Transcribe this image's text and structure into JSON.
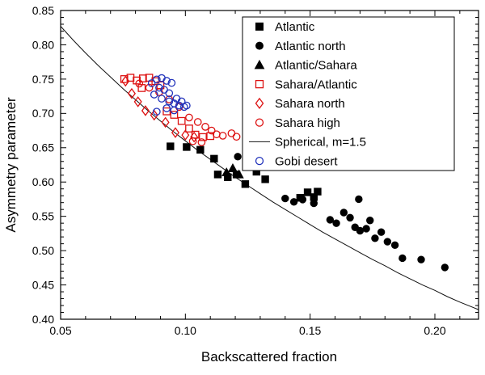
{
  "chart_data": {
    "type": "scatter",
    "title": "",
    "xlabel": "Backscattered fraction",
    "ylabel": "Asymmetry parameter",
    "xlim": [
      0.05,
      0.2175
    ],
    "ylim": [
      0.4,
      0.85
    ],
    "x_ticks": [
      0.05,
      0.1,
      0.15,
      0.2
    ],
    "x_tick_labels": [
      "0.05",
      "0.10",
      "0.15",
      "0.20"
    ],
    "y_ticks": [
      0.4,
      0.45,
      0.5,
      0.55,
      0.6,
      0.65,
      0.7,
      0.75,
      0.8,
      0.85
    ],
    "y_tick_labels": [
      "0.40",
      "0.45",
      "0.50",
      "0.55",
      "0.60",
      "0.65",
      "0.70",
      "0.75",
      "0.80",
      "0.85"
    ],
    "minor_tick_step": {
      "x": 0.01,
      "y": 0.01
    },
    "grid": false,
    "legend_position": "top-right",
    "colors": {
      "black": "#000000",
      "red": "#dd1111",
      "blue": "#2233bb",
      "line": "#111111"
    },
    "series": [
      {
        "name": "Atlantic",
        "marker": "square",
        "fill": "filled",
        "color": "#000000",
        "points": [
          [
            0.094,
            0.652
          ],
          [
            0.1005,
            0.651
          ],
          [
            0.106,
            0.647
          ],
          [
            0.1115,
            0.634
          ],
          [
            0.113,
            0.611
          ],
          [
            0.117,
            0.607
          ],
          [
            0.1205,
            0.611
          ],
          [
            0.124,
            0.597
          ],
          [
            0.1285,
            0.615
          ],
          [
            0.132,
            0.604
          ],
          [
            0.146,
            0.577
          ],
          [
            0.149,
            0.585
          ],
          [
            0.153,
            0.586
          ],
          [
            0.1515,
            0.578
          ]
        ]
      },
      {
        "name": "Atlantic north",
        "marker": "circle",
        "fill": "filled",
        "color": "#000000",
        "points": [
          [
            0.121,
            0.637
          ],
          [
            0.14,
            0.576
          ],
          [
            0.1435,
            0.571
          ],
          [
            0.147,
            0.5745
          ],
          [
            0.1515,
            0.569
          ],
          [
            0.158,
            0.545
          ],
          [
            0.1605,
            0.54
          ],
          [
            0.1635,
            0.5555
          ],
          [
            0.166,
            0.548
          ],
          [
            0.168,
            0.534
          ],
          [
            0.1695,
            0.575
          ],
          [
            0.17,
            0.529
          ],
          [
            0.1725,
            0.532
          ],
          [
            0.174,
            0.544
          ],
          [
            0.176,
            0.518
          ],
          [
            0.1785,
            0.527
          ],
          [
            0.181,
            0.513
          ],
          [
            0.184,
            0.508
          ],
          [
            0.187,
            0.489
          ],
          [
            0.1945,
            0.487
          ],
          [
            0.204,
            0.4755
          ]
        ]
      },
      {
        "name": "Atlantic/Sahara",
        "marker": "triangle",
        "fill": "filled",
        "color": "#000000",
        "points": [
          [
            0.1165,
            0.614
          ],
          [
            0.119,
            0.62
          ],
          [
            0.1215,
            0.611
          ]
        ]
      },
      {
        "name": "Sahara/Atlantic",
        "marker": "square",
        "fill": "open",
        "color": "#dd1111",
        "points": [
          [
            0.0755,
            0.75
          ],
          [
            0.078,
            0.752
          ],
          [
            0.0805,
            0.748
          ],
          [
            0.083,
            0.751
          ],
          [
            0.0855,
            0.752
          ],
          [
            0.088,
            0.747
          ],
          [
            0.0825,
            0.737
          ],
          [
            0.09,
            0.741
          ],
          [
            0.0925,
            0.703
          ],
          [
            0.0955,
            0.698
          ],
          [
            0.0985,
            0.689
          ],
          [
            0.1015,
            0.678
          ],
          [
            0.104,
            0.669
          ],
          [
            0.107,
            0.6655
          ],
          [
            0.11,
            0.667
          ]
        ]
      },
      {
        "name": "Sahara north",
        "marker": "diamond",
        "fill": "open",
        "color": "#dd1111",
        "points": [
          [
            0.076,
            0.747
          ],
          [
            0.0785,
            0.729
          ],
          [
            0.081,
            0.717
          ],
          [
            0.084,
            0.704
          ],
          [
            0.0875,
            0.6975
          ],
          [
            0.092,
            0.687
          ],
          [
            0.096,
            0.672
          ],
          [
            0.1,
            0.6685
          ],
          [
            0.1035,
            0.6655
          ]
        ]
      },
      {
        "name": "Sahara high",
        "marker": "circle",
        "fill": "open",
        "color": "#dd1111",
        "points": [
          [
            0.0815,
            0.7435
          ],
          [
            0.0855,
            0.7375
          ],
          [
            0.0895,
            0.731
          ],
          [
            0.0935,
            0.7205
          ],
          [
            0.0975,
            0.7095
          ],
          [
            0.1015,
            0.694
          ],
          [
            0.105,
            0.6875
          ],
          [
            0.108,
            0.6805
          ],
          [
            0.1105,
            0.675
          ],
          [
            0.1125,
            0.6695
          ],
          [
            0.115,
            0.6675
          ],
          [
            0.1185,
            0.671
          ],
          [
            0.103,
            0.6595
          ],
          [
            0.1065,
            0.658
          ],
          [
            0.1205,
            0.666
          ]
        ]
      },
      {
        "name": "Spherical, m=1.5",
        "type": "line",
        "color": "#111111",
        "points": [
          [
            0.05,
            0.827
          ],
          [
            0.055,
            0.807
          ],
          [
            0.06,
            0.788
          ],
          [
            0.065,
            0.77
          ],
          [
            0.07,
            0.753
          ],
          [
            0.075,
            0.736
          ],
          [
            0.08,
            0.72
          ],
          [
            0.085,
            0.704
          ],
          [
            0.09,
            0.689
          ],
          [
            0.095,
            0.674
          ],
          [
            0.1,
            0.66
          ],
          [
            0.105,
            0.646
          ],
          [
            0.11,
            0.633
          ],
          [
            0.115,
            0.62
          ],
          [
            0.12,
            0.607
          ],
          [
            0.125,
            0.595
          ],
          [
            0.13,
            0.583
          ],
          [
            0.135,
            0.571
          ],
          [
            0.14,
            0.56
          ],
          [
            0.145,
            0.549
          ],
          [
            0.15,
            0.538
          ],
          [
            0.155,
            0.527
          ],
          [
            0.16,
            0.517
          ],
          [
            0.165,
            0.507
          ],
          [
            0.17,
            0.497
          ],
          [
            0.175,
            0.487
          ],
          [
            0.18,
            0.478
          ],
          [
            0.185,
            0.468
          ],
          [
            0.19,
            0.459
          ],
          [
            0.195,
            0.45
          ],
          [
            0.2,
            0.442
          ],
          [
            0.205,
            0.433
          ],
          [
            0.21,
            0.425
          ],
          [
            0.2175,
            0.414
          ]
        ]
      },
      {
        "name": "Gobi desert",
        "marker": "circle",
        "fill": "open",
        "color": "#2233bb",
        "points": [
          [
            0.0865,
            0.744
          ],
          [
            0.0885,
            0.7495
          ],
          [
            0.0905,
            0.7515
          ],
          [
            0.0925,
            0.7475
          ],
          [
            0.0945,
            0.7445
          ],
          [
            0.0895,
            0.7375
          ],
          [
            0.0915,
            0.7345
          ],
          [
            0.0935,
            0.7295
          ],
          [
            0.0875,
            0.7275
          ],
          [
            0.0905,
            0.7215
          ],
          [
            0.0935,
            0.7175
          ],
          [
            0.0955,
            0.7145
          ],
          [
            0.0975,
            0.7115
          ],
          [
            0.0995,
            0.7095
          ],
          [
            0.0925,
            0.7075
          ],
          [
            0.0955,
            0.7045
          ],
          [
            0.0885,
            0.7025
          ],
          [
            0.0985,
            0.7175
          ],
          [
            0.1005,
            0.7115
          ],
          [
            0.0965,
            0.7215
          ]
        ]
      }
    ]
  }
}
